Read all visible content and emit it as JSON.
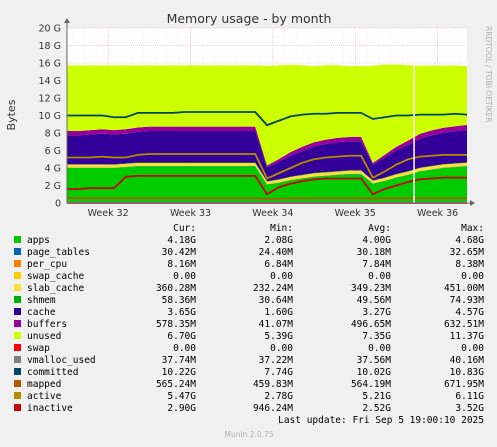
{
  "chart_data": {
    "type": "area",
    "title": "Memory usage - by month",
    "ylabel": "Bytes",
    "side_label": "RRDTOOL / TOBI OETIKER",
    "y_unit": "G",
    "ylim": [
      0,
      20
    ],
    "y_ticks": [
      {
        "v": 0,
        "label": "0"
      },
      {
        "v": 2,
        "label": "2 G"
      },
      {
        "v": 4,
        "label": "4 G"
      },
      {
        "v": 6,
        "label": "6 G"
      },
      {
        "v": 8,
        "label": "8 G"
      },
      {
        "v": 10,
        "label": "10 G"
      },
      {
        "v": 12,
        "label": "12 G"
      },
      {
        "v": 14,
        "label": "14 G"
      },
      {
        "v": 16,
        "label": "16 G"
      },
      {
        "v": 18,
        "label": "18 G"
      },
      {
        "v": 20,
        "label": "20 G"
      }
    ],
    "x_range": [
      0,
      34
    ],
    "x_ticks": [
      {
        "v": 3.5,
        "label": "Week 32"
      },
      {
        "v": 10.5,
        "label": "Week 33"
      },
      {
        "v": 17.5,
        "label": "Week 34"
      },
      {
        "v": 24.5,
        "label": "Week 35"
      },
      {
        "v": 31.5,
        "label": "Week 36"
      }
    ],
    "now_marker": 29.5,
    "grid": true,
    "x": [
      0,
      1,
      2,
      3,
      4,
      5,
      6,
      7,
      8,
      9,
      10,
      11,
      12,
      13,
      14,
      15,
      16,
      17,
      18,
      19,
      20,
      21,
      22,
      23,
      24,
      25,
      26,
      27,
      28,
      29,
      30,
      31,
      32,
      33,
      34
    ],
    "stacked_series": [
      {
        "name": "apps",
        "color": "#00cc00",
        "values": [
          4.0,
          4.0,
          4.0,
          4.0,
          4.0,
          4.1,
          4.2,
          4.2,
          4.2,
          4.2,
          4.2,
          4.2,
          4.2,
          4.2,
          4.2,
          4.2,
          4.2,
          2.1,
          2.3,
          2.6,
          2.8,
          3.0,
          3.1,
          3.2,
          3.3,
          3.3,
          2.2,
          2.5,
          2.9,
          3.2,
          3.6,
          3.8,
          4.0,
          4.1,
          4.2
        ]
      },
      {
        "name": "page_tables",
        "color": "#0066b3",
        "values": [
          0.03,
          0.03,
          0.03,
          0.03,
          0.03,
          0.03,
          0.03,
          0.03,
          0.03,
          0.03,
          0.03,
          0.03,
          0.03,
          0.03,
          0.03,
          0.03,
          0.03,
          0.03,
          0.03,
          0.03,
          0.03,
          0.03,
          0.03,
          0.03,
          0.03,
          0.03,
          0.03,
          0.03,
          0.03,
          0.03,
          0.03,
          0.03,
          0.03,
          0.03,
          0.03
        ]
      },
      {
        "name": "per_cpu",
        "color": "#ff8000",
        "values": [
          0.008,
          0.008,
          0.008,
          0.008,
          0.008,
          0.008,
          0.008,
          0.008,
          0.008,
          0.008,
          0.008,
          0.008,
          0.008,
          0.008,
          0.008,
          0.008,
          0.008,
          0.008,
          0.008,
          0.008,
          0.008,
          0.008,
          0.008,
          0.008,
          0.008,
          0.008,
          0.008,
          0.008,
          0.008,
          0.008,
          0.008,
          0.008,
          0.008,
          0.008,
          0.008
        ]
      },
      {
        "name": "swap_cache",
        "color": "#ffcc00",
        "values": [
          0,
          0,
          0,
          0,
          0,
          0,
          0,
          0,
          0,
          0,
          0,
          0,
          0,
          0,
          0,
          0,
          0,
          0,
          0,
          0,
          0,
          0,
          0,
          0,
          0,
          0,
          0,
          0,
          0,
          0,
          0,
          0,
          0,
          0,
          0
        ]
      },
      {
        "name": "slab_cache",
        "color": "#ffdd33",
        "values": [
          0.34,
          0.34,
          0.34,
          0.34,
          0.34,
          0.34,
          0.34,
          0.34,
          0.34,
          0.34,
          0.34,
          0.34,
          0.34,
          0.34,
          0.34,
          0.34,
          0.34,
          0.3,
          0.32,
          0.33,
          0.34,
          0.35,
          0.35,
          0.35,
          0.35,
          0.35,
          0.3,
          0.32,
          0.34,
          0.35,
          0.36,
          0.36,
          0.36,
          0.36,
          0.36
        ]
      },
      {
        "name": "shmem",
        "color": "#00ad00",
        "values": [
          0.05,
          0.05,
          0.05,
          0.05,
          0.05,
          0.05,
          0.05,
          0.05,
          0.05,
          0.05,
          0.05,
          0.05,
          0.05,
          0.05,
          0.05,
          0.05,
          0.05,
          0.05,
          0.05,
          0.05,
          0.05,
          0.05,
          0.05,
          0.05,
          0.05,
          0.05,
          0.05,
          0.05,
          0.05,
          0.05,
          0.05,
          0.05,
          0.05,
          0.05,
          0.05
        ]
      },
      {
        "name": "cache",
        "color": "#330099",
        "values": [
          3.3,
          3.3,
          3.4,
          3.5,
          3.4,
          3.4,
          3.5,
          3.6,
          3.6,
          3.6,
          3.6,
          3.6,
          3.6,
          3.6,
          3.6,
          3.6,
          3.6,
          1.6,
          2.0,
          2.4,
          2.7,
          3.0,
          3.2,
          3.3,
          3.3,
          3.3,
          1.8,
          2.3,
          2.7,
          3.0,
          3.3,
          3.5,
          3.6,
          3.65,
          3.7
        ]
      },
      {
        "name": "buffers",
        "color": "#990099",
        "values": [
          0.5,
          0.5,
          0.5,
          0.5,
          0.5,
          0.5,
          0.5,
          0.5,
          0.5,
          0.5,
          0.5,
          0.5,
          0.5,
          0.5,
          0.5,
          0.5,
          0.5,
          0.2,
          0.3,
          0.4,
          0.5,
          0.5,
          0.5,
          0.5,
          0.5,
          0.5,
          0.2,
          0.3,
          0.4,
          0.5,
          0.55,
          0.55,
          0.55,
          0.57,
          0.58
        ]
      },
      {
        "name": "unused",
        "color": "#ccff00",
        "values": [
          7.5,
          7.5,
          7.4,
          7.3,
          7.4,
          7.3,
          7.1,
          7.0,
          7.0,
          7.0,
          7.0,
          7.0,
          7.0,
          7.0,
          7.0,
          7.0,
          7.0,
          11.4,
          10.7,
          10.0,
          9.3,
          8.7,
          8.5,
          8.3,
          8.1,
          8.1,
          11.1,
          10.3,
          9.4,
          8.6,
          7.8,
          7.4,
          7.1,
          6.95,
          6.7
        ]
      }
    ],
    "line_series": [
      {
        "name": "swap",
        "color": "#ff0000",
        "values": [
          0,
          0,
          0,
          0,
          0,
          0,
          0,
          0,
          0,
          0,
          0,
          0,
          0,
          0,
          0,
          0,
          0,
          0,
          0,
          0,
          0,
          0,
          0,
          0,
          0,
          0,
          0,
          0,
          0,
          0,
          0,
          0,
          0,
          0,
          0
        ]
      },
      {
        "name": "vmalloc_used",
        "color": "#808080",
        "values": [
          0.04,
          0.04,
          0.04,
          0.04,
          0.04,
          0.04,
          0.04,
          0.04,
          0.04,
          0.04,
          0.04,
          0.04,
          0.04,
          0.04,
          0.04,
          0.04,
          0.04,
          0.04,
          0.04,
          0.04,
          0.04,
          0.04,
          0.04,
          0.04,
          0.04,
          0.04,
          0.04,
          0.04,
          0.04,
          0.04,
          0.04,
          0.04,
          0.04,
          0.04,
          0.04
        ]
      },
      {
        "name": "committed",
        "color": "#004466",
        "values": [
          10.0,
          10.0,
          10.0,
          10.0,
          9.8,
          9.8,
          10.3,
          10.3,
          10.3,
          10.3,
          10.4,
          10.4,
          10.4,
          10.4,
          10.4,
          10.4,
          10.4,
          8.9,
          9.4,
          9.9,
          10.1,
          10.2,
          10.2,
          10.3,
          10.3,
          10.3,
          9.6,
          9.8,
          10.0,
          10.0,
          10.1,
          10.1,
          10.1,
          10.2,
          10.1
        ]
      },
      {
        "name": "mapped",
        "color": "#b35900",
        "values": [
          0.56,
          0.56,
          0.56,
          0.56,
          0.56,
          0.56,
          0.56,
          0.56,
          0.56,
          0.56,
          0.56,
          0.56,
          0.56,
          0.56,
          0.56,
          0.56,
          0.56,
          0.46,
          0.5,
          0.53,
          0.55,
          0.56,
          0.56,
          0.56,
          0.56,
          0.56,
          0.5,
          0.53,
          0.55,
          0.56,
          0.56,
          0.56,
          0.56,
          0.56,
          0.56
        ]
      },
      {
        "name": "active",
        "color": "#b38f00",
        "values": [
          5.2,
          5.2,
          5.2,
          5.3,
          5.2,
          5.2,
          5.5,
          5.6,
          5.6,
          5.6,
          5.6,
          5.6,
          5.6,
          5.6,
          5.6,
          5.6,
          5.6,
          2.8,
          3.4,
          4.0,
          4.6,
          5.0,
          5.2,
          5.3,
          5.4,
          5.4,
          2.9,
          3.6,
          4.4,
          5.0,
          5.3,
          5.4,
          5.5,
          5.5,
          5.5
        ]
      },
      {
        "name": "inactive",
        "color": "#cc0000",
        "values": [
          1.6,
          1.6,
          1.7,
          1.7,
          1.7,
          3.0,
          3.1,
          3.1,
          3.1,
          3.1,
          3.1,
          3.1,
          3.1,
          3.1,
          3.1,
          3.1,
          3.1,
          1.0,
          1.8,
          2.2,
          2.5,
          2.7,
          2.8,
          2.8,
          2.8,
          2.8,
          1.0,
          1.6,
          2.0,
          2.4,
          2.7,
          2.8,
          2.9,
          2.9,
          2.9
        ]
      }
    ],
    "legend": {
      "headers": [
        "Cur:",
        "Min:",
        "Avg:",
        "Max:"
      ],
      "rows": [
        {
          "name": "apps",
          "color": "#00cc00",
          "cur": "4.18G",
          "min": "2.08G",
          "avg": "4.00G",
          "max": "4.68G"
        },
        {
          "name": "page_tables",
          "color": "#0066b3",
          "cur": "30.42M",
          "min": "24.40M",
          "avg": "30.18M",
          "max": "32.65M"
        },
        {
          "name": "per_cpu",
          "color": "#ff8000",
          "cur": "8.16M",
          "min": "6.84M",
          "avg": "7.84M",
          "max": "8.38M"
        },
        {
          "name": "swap_cache",
          "color": "#ffcc00",
          "cur": "0.00",
          "min": "0.00",
          "avg": "0.00",
          "max": "0.00"
        },
        {
          "name": "slab_cache",
          "color": "#ffdd33",
          "cur": "360.28M",
          "min": "232.24M",
          "avg": "349.23M",
          "max": "451.00M"
        },
        {
          "name": "shmem",
          "color": "#00ad00",
          "cur": "58.36M",
          "min": "30.64M",
          "avg": "49.56M",
          "max": "74.93M"
        },
        {
          "name": "cache",
          "color": "#330099",
          "cur": "3.65G",
          "min": "1.60G",
          "avg": "3.27G",
          "max": "4.57G"
        },
        {
          "name": "buffers",
          "color": "#990099",
          "cur": "578.35M",
          "min": "41.07M",
          "avg": "496.65M",
          "max": "632.51M"
        },
        {
          "name": "unused",
          "color": "#ccff00",
          "cur": "6.70G",
          "min": "5.39G",
          "avg": "7.35G",
          "max": "11.37G"
        },
        {
          "name": "swap",
          "color": "#ff0000",
          "cur": "0.00",
          "min": "0.00",
          "avg": "0.00",
          "max": "0.00"
        },
        {
          "name": "vmalloc_used",
          "color": "#808080",
          "cur": "37.74M",
          "min": "37.22M",
          "avg": "37.56M",
          "max": "40.16M"
        },
        {
          "name": "committed",
          "color": "#004466",
          "cur": "10.22G",
          "min": "7.74G",
          "avg": "10.02G",
          "max": "10.83G"
        },
        {
          "name": "mapped",
          "color": "#b35900",
          "cur": "565.24M",
          "min": "459.83M",
          "avg": "564.19M",
          "max": "671.95M"
        },
        {
          "name": "active",
          "color": "#b38f00",
          "cur": "5.47G",
          "min": "2.78G",
          "avg": "5.21G",
          "max": "6.11G"
        },
        {
          "name": "inactive",
          "color": "#cc0000",
          "cur": "2.90G",
          "min": "946.24M",
          "avg": "2.52G",
          "max": "3.52G"
        }
      ]
    },
    "last_update": "Last update:  Fri Sep  5 19:00:10 2025",
    "footer": "Munin 2.0.75"
  }
}
